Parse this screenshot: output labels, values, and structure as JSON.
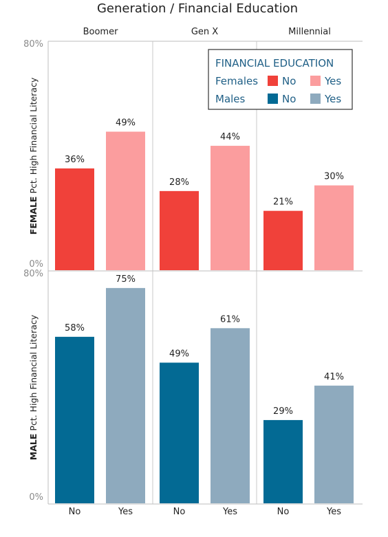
{
  "chart_data": {
    "type": "bar",
    "title": "Generation / Financial Education",
    "generations": [
      "Boomer",
      "Gen X",
      "Millennial"
    ],
    "categories": [
      "No",
      "Yes"
    ],
    "ylim": [
      0,
      80
    ],
    "y_ticks": [
      "80%",
      "0%"
    ],
    "grid": false,
    "legend_position": "top-right",
    "legend": {
      "title": "FINANCIAL EDUCATION",
      "rows": [
        {
          "label": "Females",
          "items": [
            {
              "label": "No",
              "color": "#f0413a"
            },
            {
              "label": "Yes",
              "color": "#fb9d9e"
            }
          ]
        },
        {
          "label": "Males",
          "items": [
            {
              "label": "No",
              "color": "#036a94"
            },
            {
              "label": "Yes",
              "color": "#8eaabe"
            }
          ]
        }
      ]
    },
    "panels": [
      {
        "gender": "FEMALE",
        "ylabel": "Pct. High Financial Literacy",
        "colors": {
          "No": "#f0413a",
          "Yes": "#fb9d9e"
        },
        "values": [
          {
            "generation": "Boomer",
            "No": 36,
            "Yes": 49
          },
          {
            "generation": "Gen X",
            "No": 28,
            "Yes": 44
          },
          {
            "generation": "Millennial",
            "No": 21,
            "Yes": 30
          }
        ]
      },
      {
        "gender": "MALE",
        "ylabel": "Pct. High Financial Literacy",
        "colors": {
          "No": "#036a94",
          "Yes": "#8eaabe"
        },
        "values": [
          {
            "generation": "Boomer",
            "No": 58,
            "Yes": 75
          },
          {
            "generation": "Gen X",
            "No": 49,
            "Yes": 61
          },
          {
            "generation": "Millennial",
            "No": 29,
            "Yes": 41
          }
        ]
      }
    ]
  },
  "legend_title_color": "#1f5f86",
  "legend_text_color": "#1f5f86"
}
